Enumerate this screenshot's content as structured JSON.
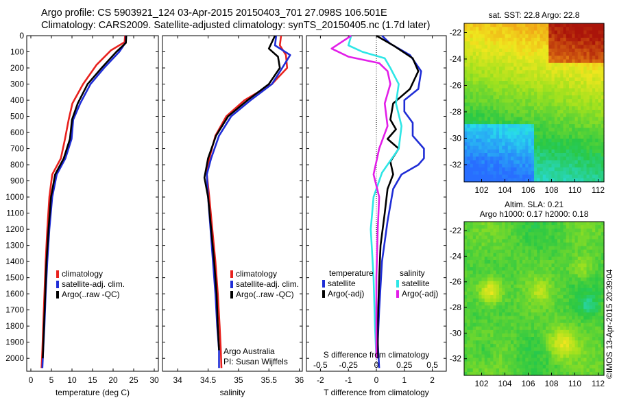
{
  "header": {
    "line1": "Argo profile: CS 5903921_124 03-Apr-2015 20150403_701 27.098S 106.501E",
    "line2": "Climatology: CARS2009. Satellite-adjusted climatology: synTS_20150405.nc (1.7d later)"
  },
  "watermark": "©IMOS 13-Apr-2015 20:39:04",
  "colors": {
    "climatology": "#e8221e",
    "satellite": "#1f2dd6",
    "argo": "#000000",
    "salinity_satellite": "#2ee6e6",
    "salinity_argo": "#e21ee8"
  },
  "chart_data": [
    {
      "id": "temperature",
      "type": "line",
      "xlabel": "temperature (deg C)",
      "ylabel": "",
      "xlim": [
        -1,
        31
      ],
      "ylim": [
        2080,
        0
      ],
      "xticks": [
        "0",
        "5",
        "10",
        "15",
        "20",
        "25",
        "30"
      ],
      "yticks": [
        "0",
        "100",
        "200",
        "300",
        "400",
        "500",
        "600",
        "700",
        "800",
        "900",
        "1000",
        "1100",
        "1200",
        "1300",
        "1400",
        "1500",
        "1600",
        "1700",
        "1800",
        "1900",
        "2000"
      ],
      "legend": [
        "climatology",
        "satellite-adj. clim.",
        "Argo(..raw -QC)"
      ],
      "legend_position": "lower-left",
      "series": [
        {
          "name": "climatology",
          "color": "#e8221e",
          "x": [
            22.9,
            22.8,
            19.5,
            16,
            12.7,
            10.1,
            9.2,
            8.3,
            7.3,
            5.2,
            4.5,
            4.0,
            3.6,
            3.3,
            3.0,
            2.8,
            2.6
          ],
          "y": [
            0,
            40,
            90,
            180,
            300,
            420,
            520,
            640,
            760,
            860,
            1000,
            1200,
            1400,
            1600,
            1800,
            1950,
            2060
          ]
        },
        {
          "name": "satellite-adj. clim.",
          "color": "#1f2dd6",
          "x": [
            23.1,
            23.1,
            21.5,
            17.8,
            14.5,
            12,
            10.3,
            9.9,
            8.4,
            6.3,
            5.2,
            4.5,
            4.0,
            3.6,
            3.3,
            3.0,
            2.8
          ],
          "y": [
            0,
            40,
            100,
            200,
            300,
            420,
            520,
            640,
            760,
            860,
            1000,
            1200,
            1400,
            1600,
            1800,
            1950,
            2060
          ]
        },
        {
          "name": "Argo(..raw -QC)",
          "color": "#000000",
          "x": [
            23.2,
            23.1,
            20.8,
            17.2,
            13.8,
            11.4,
            10.0,
            9.5,
            8.0,
            5.9,
            4.9,
            4.3,
            3.8,
            3.5,
            3.2,
            2.9
          ],
          "y": [
            0,
            45,
            100,
            200,
            300,
            420,
            520,
            640,
            760,
            860,
            1000,
            1200,
            1400,
            1600,
            1800,
            2000
          ]
        }
      ]
    },
    {
      "id": "salinity",
      "type": "line",
      "xlabel": "salinity",
      "ylabel": "",
      "xlim": [
        33.75,
        36.05
      ],
      "ylim": [
        2080,
        0
      ],
      "xticks": [
        "34",
        "34.5",
        "35",
        "35.5",
        "36"
      ],
      "legend": [
        "climatology",
        "satellite-adj. clim.",
        "Argo(..raw -QC)"
      ],
      "legend_position": "lower-right",
      "annotation": [
        "Argo Australia",
        "PI: Susan Wijffels"
      ],
      "series": [
        {
          "name": "climatology",
          "color": "#e8221e",
          "x": [
            35.7,
            35.68,
            35.78,
            35.8,
            35.55,
            35.1,
            34.8,
            34.62,
            34.52,
            34.48,
            34.52,
            34.57,
            34.62,
            34.66,
            34.69,
            34.71,
            34.72
          ],
          "y": [
            0,
            60,
            120,
            200,
            300,
            400,
            500,
            620,
            760,
            860,
            1000,
            1200,
            1400,
            1600,
            1800,
            1950,
            2060
          ]
        },
        {
          "name": "satellite-adj. clim.",
          "color": "#1f2dd6",
          "x": [
            35.62,
            35.6,
            35.85,
            35.72,
            35.55,
            35.2,
            34.88,
            34.68,
            34.55,
            34.48,
            34.5,
            34.54,
            34.58,
            34.62,
            34.65,
            34.68,
            34.68
          ],
          "y": [
            0,
            60,
            120,
            200,
            300,
            400,
            500,
            620,
            760,
            860,
            1000,
            1200,
            1400,
            1600,
            1800,
            1950,
            2060
          ]
        },
        {
          "name": "Argo(..raw -QC)",
          "color": "#000000",
          "x": [
            35.6,
            35.5,
            35.65,
            35.68,
            35.5,
            35.15,
            34.83,
            34.63,
            34.5,
            34.44,
            34.5,
            34.55,
            34.6,
            34.64,
            34.66,
            34.68
          ],
          "y": [
            0,
            80,
            130,
            200,
            300,
            400,
            500,
            620,
            760,
            880,
            1000,
            1200,
            1400,
            1600,
            1800,
            1950
          ]
        }
      ]
    },
    {
      "id": "difference",
      "type": "line",
      "xlabel": "T difference from climatology",
      "xlabel2": "S difference from climatology",
      "xlim": [
        -2.5,
        2.5
      ],
      "ylim": [
        2080,
        0
      ],
      "xticks": [
        "-2",
        "-1",
        "0",
        "1",
        "2"
      ],
      "xticks_s": [
        "-0.5",
        "-0.25",
        "0",
        "0.25",
        "0.5"
      ],
      "legend_groups": [
        "temperature",
        "salinity"
      ],
      "legend": [
        "satellite",
        "Argo(-adj)",
        "satellite",
        "Argo(-adj)"
      ],
      "series": [
        {
          "name": "satellite",
          "group": "temperature",
          "color": "#1f2dd6",
          "x": [
            0.2,
            0.5,
            1.2,
            1.6,
            1.5,
            1.0,
            1.0,
            1.3,
            1.3,
            1.7,
            1.7,
            1.5,
            0.9,
            0.6,
            0.4,
            0.2,
            0.1,
            0.05,
            0.1
          ],
          "y": [
            0,
            50,
            120,
            220,
            330,
            400,
            470,
            540,
            620,
            700,
            760,
            800,
            860,
            950,
            1150,
            1400,
            1700,
            1900,
            2060
          ]
        },
        {
          "name": "Argo(-adj)",
          "group": "temperature",
          "color": "#000000",
          "x": [
            0,
            0.6,
            1.3,
            1.5,
            1.2,
            0.6,
            0.5,
            0.7,
            0.4,
            0.8,
            0.5,
            0.6,
            0.4,
            0.3,
            0.15,
            0.1,
            0.05,
            0.05
          ],
          "y": [
            0,
            60,
            140,
            220,
            330,
            420,
            520,
            580,
            640,
            700,
            780,
            860,
            950,
            1100,
            1300,
            1500,
            1800,
            2000
          ]
        },
        {
          "name": "satellite",
          "group": "salinity",
          "color": "#2ee6e6",
          "x": [
            -0.9,
            -1.0,
            -0.5,
            0.3,
            0.5,
            0.8,
            0.7,
            0.9,
            0.8,
            0.2,
            -0.1,
            -0.2,
            -0.1,
            -0.05,
            0
          ],
          "y": [
            0,
            60,
            100,
            140,
            200,
            300,
            420,
            560,
            700,
            850,
            1000,
            1200,
            1500,
            1800,
            2000
          ]
        },
        {
          "name": "Argo(-adj)",
          "group": "salinity",
          "color": "#e21ee8",
          "x": [
            -0.9,
            -1.6,
            -1.0,
            0.1,
            0.4,
            0.5,
            0.3,
            0.4,
            0.1,
            -0.1,
            0.1,
            0.05,
            0,
            0,
            0
          ],
          "y": [
            0,
            80,
            130,
            170,
            220,
            300,
            420,
            560,
            700,
            860,
            1000,
            1200,
            1500,
            1800,
            2000
          ]
        }
      ]
    },
    {
      "id": "sst-map",
      "type": "heatmap",
      "title": "sat. SST: 22.8 Argo: 22.8",
      "xlim": [
        100.5,
        112.5
      ],
      "ylim": [
        -33.3,
        -21.3
      ],
      "xticks": [
        "102",
        "104",
        "106",
        "108",
        "110",
        "112"
      ],
      "yticks": [
        "-22",
        "-24",
        "-26",
        "-28",
        "-30",
        "-32"
      ]
    },
    {
      "id": "sla-map",
      "type": "heatmap",
      "title": "Altim. SLA: 0.21",
      "subtitle": "Argo h1000: 0.17 h2000: 0.18",
      "xlim": [
        100.5,
        112.5
      ],
      "ylim": [
        -33.3,
        -21.3
      ],
      "xticks": [
        "102",
        "104",
        "106",
        "108",
        "110",
        "112"
      ],
      "yticks": [
        "-22",
        "-24",
        "-26",
        "-28",
        "-30",
        "-32"
      ]
    }
  ]
}
